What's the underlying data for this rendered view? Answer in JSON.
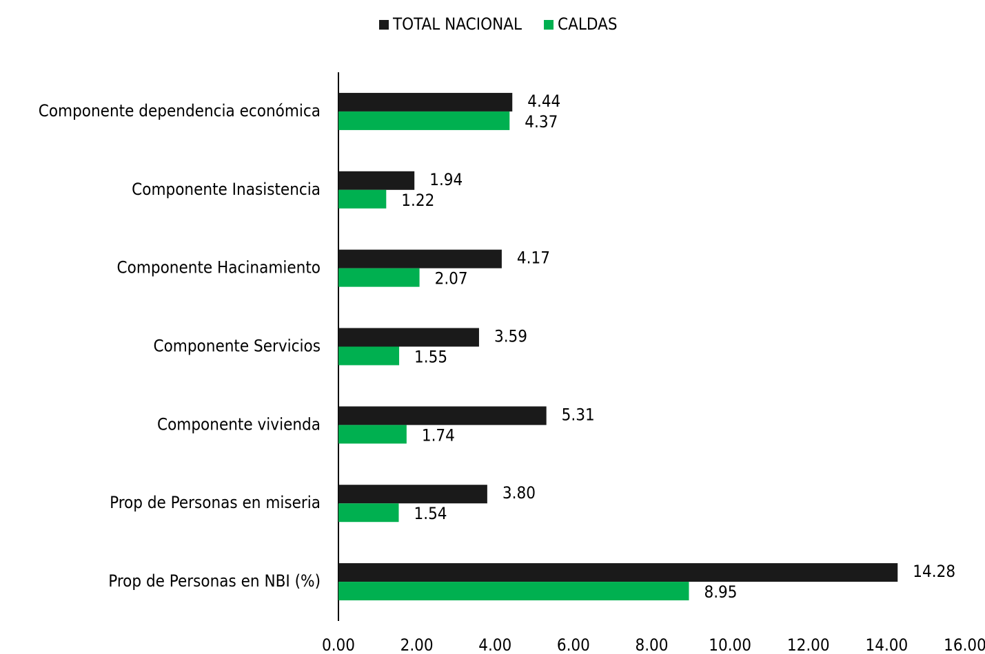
{
  "chart_data": {
    "type": "hbar",
    "categories": [
      "Componente dependencia económica",
      "Componente Inasistencia",
      "Componente Hacinamiento",
      "Componente Servicios",
      "Componente vivienda",
      "Prop de Personas en miseria",
      "Prop de Personas en NBI (%)"
    ],
    "series": [
      {
        "name": "TOTAL NACIONAL",
        "color": "#1a1a1a",
        "values": [
          4.44,
          1.94,
          4.17,
          3.59,
          5.31,
          3.8,
          14.28
        ],
        "value_labels": [
          "4.44",
          "1.94",
          "4.17",
          "3.59",
          "5.31",
          "3.80",
          "14.28"
        ]
      },
      {
        "name": "CALDAS",
        "color": "#00b050",
        "values": [
          4.37,
          1.22,
          2.07,
          1.55,
          1.74,
          1.54,
          8.95
        ],
        "value_labels": [
          "4.37",
          "1.22",
          "2.07",
          "1.55",
          "1.74",
          "1.54",
          "8.95"
        ]
      }
    ],
    "xlim": [
      0,
      16
    ],
    "xticks": [
      {
        "value": 0,
        "label": "0.00"
      },
      {
        "value": 2,
        "label": "2.00"
      },
      {
        "value": 4,
        "label": "4.00"
      },
      {
        "value": 6,
        "label": "6.00"
      },
      {
        "value": 8,
        "label": "8.00"
      },
      {
        "value": 10,
        "label": "10.00"
      },
      {
        "value": 12,
        "label": "12.00"
      },
      {
        "value": 14,
        "label": "14.00"
      },
      {
        "value": 16,
        "label": "16.00"
      }
    ],
    "legend": "top"
  }
}
